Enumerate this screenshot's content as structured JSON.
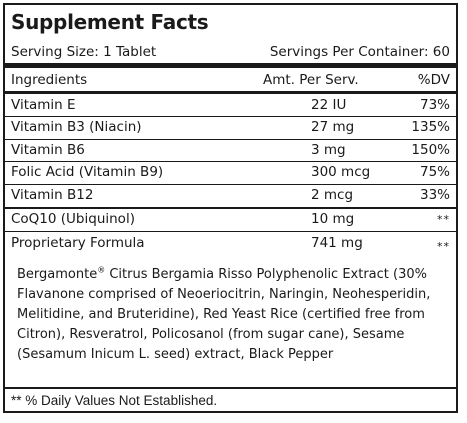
{
  "title": "Supplement Facts",
  "serving_size": "Serving Size: 1 Tablet",
  "servings_per_container": "Servings Per Container: 60",
  "columns": {
    "ingredients": "Ingredients",
    "amount": "Amt. Per Serv.",
    "dv": "%DV"
  },
  "rows": [
    {
      "name": "Vitamin E",
      "amount": "22 IU",
      "dv": "73%"
    },
    {
      "name": "Vitamin B3 (Niacin)",
      "amount": "27 mg",
      "dv": "135%"
    },
    {
      "name": "Vitamin B6",
      "amount": "3 mg",
      "dv": "150%"
    },
    {
      "name": "Folic Acid (Vitamin B9)",
      "amount": "300 mcg",
      "dv": "75%"
    },
    {
      "name": "Vitamin B12",
      "amount": "2 mcg",
      "dv": "33%"
    },
    {
      "name": "CoQ10 (Ubiquinol)",
      "amount": "10 mg",
      "dv": "**"
    },
    {
      "name": "Proprietary Formula",
      "amount": "741 mg",
      "dv": "**"
    }
  ],
  "blend": {
    "brand": "Bergamonte",
    "trademark": "®",
    "description": " Citrus Bergamia Risso Polyphenolic Extract (30% Flavanone comprised of Neoeriocitrin, Naringin, Neohesperidin, Melitidine, and Bruteridine), Red Yeast Rice (certified free from Citron), Resveratrol, Policosanol (from sugar cane), Sesame (Sesamum Inicum L. seed) extract, Black Pepper"
  },
  "footnote": "** % Daily Values Not Established."
}
